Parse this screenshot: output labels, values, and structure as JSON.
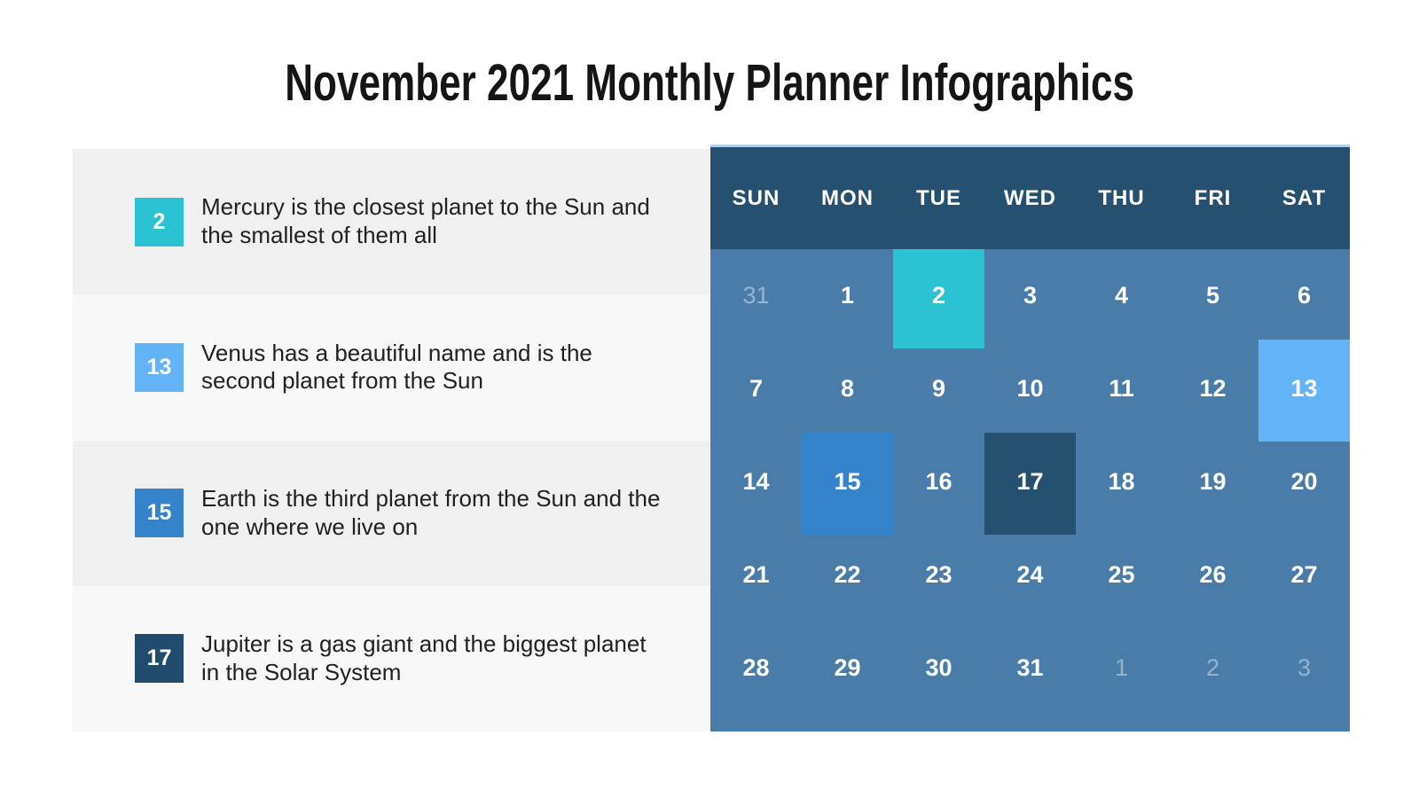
{
  "title": "November 2021 Monthly Planner Infographics",
  "palette": {
    "teal": "#2bc2d4",
    "light_blue": "#62b4f6",
    "medium_blue": "#3583cb",
    "navy": "#26506f",
    "calendar_bg": "#4a7ca9",
    "calendar_top_line": "#a9d4f0",
    "legend_row_odd": "#f0f0f0",
    "legend_row_even": "#f8f8f8"
  },
  "legend": {
    "items": [
      {
        "day": "2",
        "color": "teal",
        "text": "Mercury is the closest planet to the Sun and the smallest of them all"
      },
      {
        "day": "13",
        "color": "light_blue",
        "text": "Venus has a beautiful name and is the second planet from the Sun"
      },
      {
        "day": "15",
        "color": "medium_blue",
        "text": "Earth is the third planet from the Sun and the one where we live on"
      },
      {
        "day": "17",
        "color": "navy",
        "text": "Jupiter is a gas giant and the biggest planet in the Solar System"
      }
    ]
  },
  "calendar": {
    "day_headers": [
      "SUN",
      "MON",
      "TUE",
      "WED",
      "THU",
      "FRI",
      "SAT"
    ],
    "weeks": [
      [
        {
          "label": "31",
          "muted": true
        },
        {
          "label": "1"
        },
        {
          "label": "2",
          "highlight": "teal"
        },
        {
          "label": "3"
        },
        {
          "label": "4"
        },
        {
          "label": "5"
        },
        {
          "label": "6"
        }
      ],
      [
        {
          "label": "7"
        },
        {
          "label": "8"
        },
        {
          "label": "9"
        },
        {
          "label": "10"
        },
        {
          "label": "11"
        },
        {
          "label": "12"
        },
        {
          "label": "13",
          "highlight": "light_blue"
        }
      ],
      [
        {
          "label": "14"
        },
        {
          "label": "15",
          "highlight": "medium_blue"
        },
        {
          "label": "16"
        },
        {
          "label": "17",
          "highlight": "navy"
        },
        {
          "label": "18"
        },
        {
          "label": "19"
        },
        {
          "label": "20"
        }
      ],
      [
        {
          "label": "21"
        },
        {
          "label": "22"
        },
        {
          "label": "23"
        },
        {
          "label": "24"
        },
        {
          "label": "25"
        },
        {
          "label": "26"
        },
        {
          "label": "27"
        }
      ],
      [
        {
          "label": "28"
        },
        {
          "label": "29"
        },
        {
          "label": "30"
        },
        {
          "label": "31"
        },
        {
          "label": "1",
          "muted": true
        },
        {
          "label": "2",
          "muted": true
        },
        {
          "label": "3",
          "muted": true
        }
      ]
    ]
  }
}
